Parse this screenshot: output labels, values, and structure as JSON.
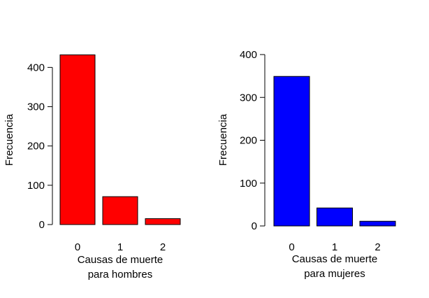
{
  "chart_data": [
    {
      "type": "bar",
      "categories": [
        "0",
        "1",
        "2"
      ],
      "values": [
        432,
        71,
        15
      ],
      "ylabel": "Frecuencia",
      "xlabel_lines": [
        "Causas de muerte",
        "para hombres"
      ],
      "yticks": [
        "0",
        "100",
        "200",
        "300",
        "400"
      ],
      "ylim": [
        0,
        432
      ],
      "bar_color": "#ff0000",
      "grid": false
    },
    {
      "type": "bar",
      "categories": [
        "0",
        "1",
        "2"
      ],
      "values": [
        349,
        42,
        11
      ],
      "ylabel": "Frecuencia",
      "xlabel_lines": [
        "Causas de muerte",
        "para mujeres"
      ],
      "yticks": [
        "0",
        "100",
        "200",
        "300",
        "400"
      ],
      "ylim": [
        0,
        400
      ],
      "bar_color": "#0000ff",
      "grid": false
    }
  ]
}
